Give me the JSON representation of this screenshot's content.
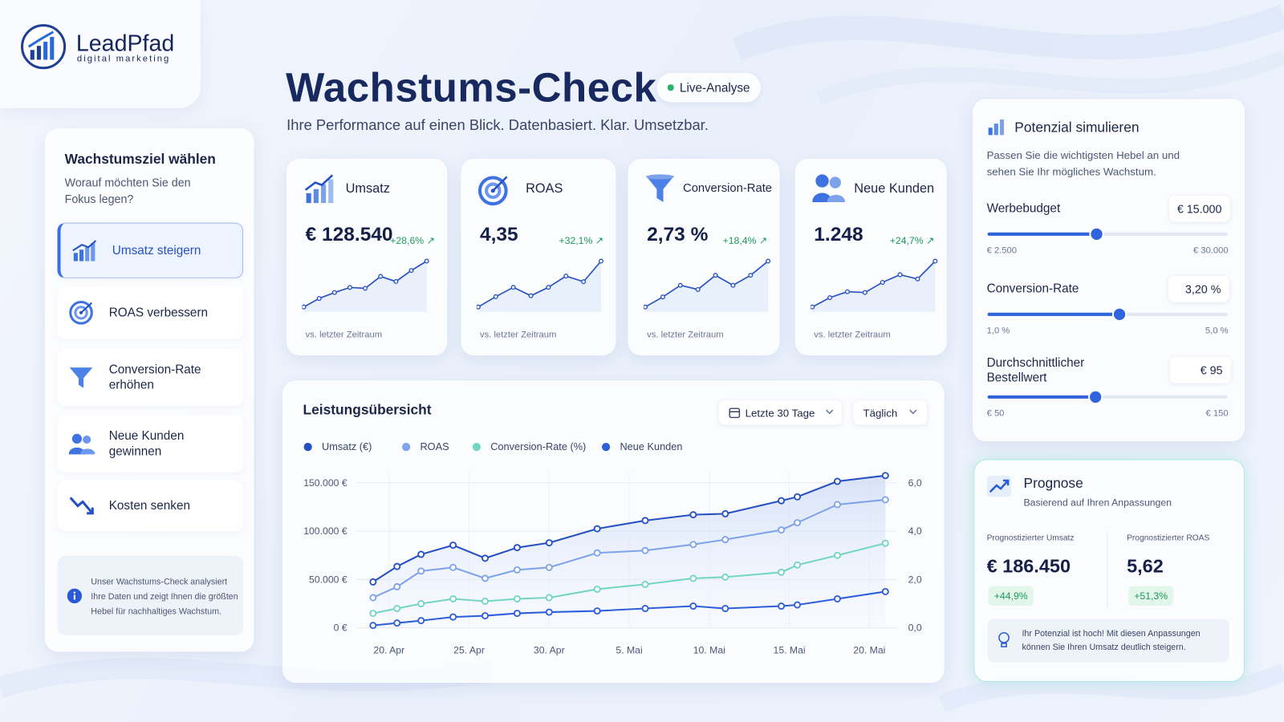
{
  "brand": {
    "name": "LeadPfad",
    "tagline": "digital marketing"
  },
  "header": {
    "title": "Wachstums-Check",
    "badge": "Live-Analyse",
    "subtitle": "Ihre Performance auf einen Blick. Datenbasiert. Klar. Umsetzbar."
  },
  "goals": {
    "title": "Wachstumsziel wählen",
    "subtitle": "Worauf möchten Sie den Fokus legen?",
    "items": [
      "Umsatz steigern",
      "ROAS verbessern",
      "Conversion-Rate erhöhen",
      "Neue Kunden gewinnen",
      "Kosten senken"
    ],
    "info": "Unser Wachstums-Check analysiert Ihre Daten und zeigt Ihnen die größten Hebel für nachhaltiges Wachstum."
  },
  "kpis": [
    {
      "label": "Umsatz",
      "value": "€ 128.540",
      "change": "+28,6%",
      "footnote": "vs. letzter Zeitraum",
      "sparkline": [
        13,
        23,
        30,
        36,
        35,
        49,
        43,
        56,
        67
      ]
    },
    {
      "label": "ROAS",
      "value": "4,35",
      "change": "+32,1%",
      "footnote": "vs. letzter Zeitraum",
      "sparkline": [
        21,
        32,
        42,
        33,
        42,
        54,
        48,
        70
      ]
    },
    {
      "label": "Conversion-Rate",
      "value": "2,73 %",
      "change": "+18,4%",
      "footnote": "vs. letzter Zeitraum",
      "sparkline": [
        21,
        33,
        47,
        42,
        59,
        47,
        59,
        76
      ]
    },
    {
      "label": "Neue Kunden",
      "value": "1.248",
      "change": "+24,7%",
      "footnote": "vs. letzter Zeitraum",
      "sparkline": [
        16,
        27,
        34,
        33,
        45,
        54,
        49,
        70
      ]
    }
  ],
  "chart_controls": {
    "range": "Letzte 30 Tage",
    "interval": "Täglich"
  },
  "chart_data": {
    "type": "line",
    "title": "Leistungsübersicht",
    "x": [
      19,
      20.5,
      22,
      24,
      26,
      28,
      30,
      33,
      36,
      39,
      41,
      44.5,
      45.5,
      48,
      51
    ],
    "xlim": [
      18,
      51.5
    ],
    "xticks": [
      {
        "value": 20,
        "label": "20. Apr"
      },
      {
        "value": 25,
        "label": "25. Apr"
      },
      {
        "value": 30,
        "label": "30. Apr"
      },
      {
        "value": 35,
        "label": "5. Mai"
      },
      {
        "value": 40,
        "label": "10. Mai"
      },
      {
        "value": 45,
        "label": "15. Mai"
      },
      {
        "value": 50,
        "label": "20. Mai"
      }
    ],
    "ylim": [
      0,
      160000
    ],
    "yticks": [
      {
        "value": 0,
        "label": "0 €"
      },
      {
        "value": 50000,
        "label": "50.000 €"
      },
      {
        "value": 100000,
        "label": "100.000 €"
      },
      {
        "value": 150000,
        "label": "150.000 €"
      }
    ],
    "y2lim": [
      0,
      6.4
    ],
    "y2ticks": [
      {
        "value": 0,
        "label": "0,0"
      },
      {
        "value": 2,
        "label": "2,0"
      },
      {
        "value": 4,
        "label": "4,0"
      },
      {
        "value": 6,
        "label": "6,0"
      }
    ],
    "grid": true,
    "series": [
      {
        "name": "Umsatz (€)",
        "color": "#2450c2",
        "values": [
          47500,
          63500,
          76000,
          85500,
          72000,
          83000,
          88000,
          102500,
          111000,
          117000,
          118000,
          131500,
          135500,
          151500,
          157500
        ]
      },
      {
        "name": "ROAS",
        "color": "#7fa3ea",
        "axis": "y2",
        "values": [
          1.25,
          1.7,
          2.35,
          2.5,
          2.05,
          2.4,
          2.5,
          3.1,
          3.2,
          3.45,
          3.65,
          4.05,
          4.35,
          5.1,
          5.3
        ]
      },
      {
        "name": "Conversion-Rate (%)",
        "color": "#72d5c3",
        "axis": "y2",
        "values": [
          0.6,
          0.8,
          1.0,
          1.2,
          1.1,
          1.2,
          1.25,
          1.6,
          1.8,
          2.05,
          2.1,
          2.3,
          2.6,
          3.0,
          3.5
        ]
      },
      {
        "name": "Neue Kunden",
        "color": "#2d5fd9",
        "axis": "y2",
        "values": [
          0.1,
          0.2,
          0.3,
          0.45,
          0.5,
          0.6,
          0.65,
          0.7,
          0.8,
          0.9,
          0.8,
          0.9,
          0.95,
          1.2,
          1.5
        ]
      }
    ]
  },
  "simulator": {
    "title": "Potenzial simulieren",
    "subtitle": "Passen Sie die wichtigsten Hebel an und sehen Sie Ihr mögliches Wachstum.",
    "sliders": [
      {
        "label": "Werbebudget",
        "value": {
          "value": 15000,
          "label": "€ 15.000"
        },
        "min": {
          "value": 2500,
          "label": "€ 2.500"
        },
        "max": {
          "value": 30000,
          "label": "€ 30.000"
        }
      },
      {
        "label": "Conversion-Rate",
        "value": {
          "value": 3.2,
          "label": "3,20 %"
        },
        "min": {
          "value": 1,
          "label": "1,0 %"
        },
        "max": {
          "value": 5,
          "label": "5,0 %"
        }
      },
      {
        "label": "Durchschnittlicher Bestellwert",
        "value": {
          "value": 95,
          "label": "€ 95"
        },
        "min": {
          "value": 50,
          "label": "€ 50"
        },
        "max": {
          "value": 150,
          "label": "€ 150"
        }
      }
    ]
  },
  "forecast": {
    "title": "Prognose",
    "subtitle": "Basierend auf Ihren Anpassungen",
    "items": [
      {
        "label": "Prognostizierter Umsatz",
        "value": "€ 186.450",
        "change": "+44,9%"
      },
      {
        "label": "Prognostizierter ROAS",
        "value": "5,62",
        "change": "+51,3%"
      }
    ],
    "note": "Ihr Potenzial ist hoch! Mit diesen Anpassungen können Sie Ihren Umsatz deutlich steigern."
  }
}
